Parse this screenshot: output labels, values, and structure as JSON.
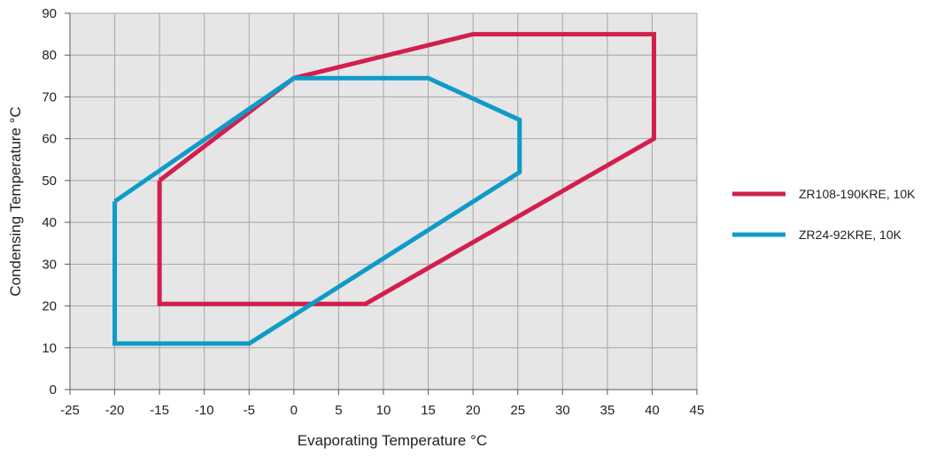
{
  "chart_data": {
    "type": "line",
    "title": "",
    "xlabel": "Evaporating Temperature °C",
    "ylabel": "Condensing Temperature °C",
    "xlim": [
      -25,
      45
    ],
    "ylim": [
      0,
      90
    ],
    "x_ticks": [
      -25,
      -20,
      -15,
      -10,
      -5,
      0,
      5,
      10,
      15,
      20,
      25,
      30,
      35,
      40,
      45
    ],
    "y_ticks": [
      0,
      10,
      20,
      30,
      40,
      50,
      60,
      70,
      80,
      90
    ],
    "grid": true,
    "plot_background": "#e6e6e6",
    "grid_color": "#a6a6a6",
    "legend_position": "right",
    "series": [
      {
        "name": "ZR108-190KRE, 10K",
        "color": "#d21f4d",
        "points": [
          [
            -15,
            50
          ],
          [
            0,
            74.5
          ],
          [
            20,
            85
          ],
          [
            40.2,
            85
          ],
          [
            40.2,
            60
          ],
          [
            8,
            20.5
          ],
          [
            -15,
            20.5
          ],
          [
            -15,
            50
          ]
        ]
      },
      {
        "name": "ZR24-92KRE, 10K",
        "color": "#0f9bc8",
        "points": [
          [
            -20,
            45
          ],
          [
            0,
            74.5
          ],
          [
            15,
            74.5
          ],
          [
            25.2,
            64.5
          ],
          [
            25.2,
            52
          ],
          [
            -5,
            11
          ],
          [
            -20,
            11
          ],
          [
            -20,
            45
          ]
        ]
      }
    ]
  }
}
